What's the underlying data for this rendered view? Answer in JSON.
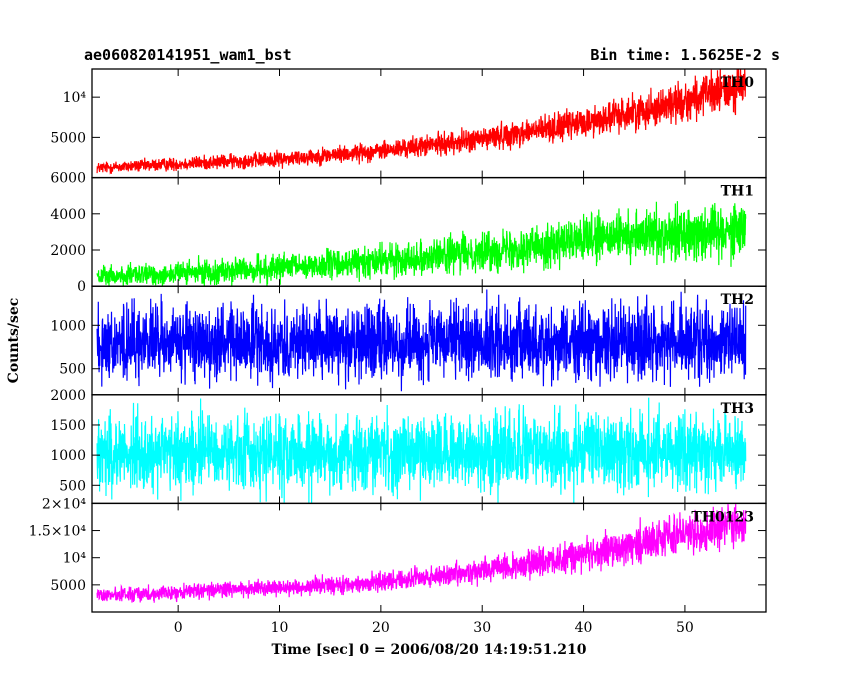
{
  "header": {
    "title": "ae060820141951_wam1_bst",
    "bin_time": "Bin time: 1.5625E-2 s"
  },
  "chart_data": {
    "type": "line",
    "title": "ae060820141951_wam1_bst",
    "subtitle": "Bin time: 1.5625E-2 s",
    "xlabel": "Time [sec] 0 = 2006/08/20 14:19:51.210",
    "ylabel": "Counts/sec",
    "xlim": [
      -8.5,
      58
    ],
    "x_data_range": [
      -8,
      56
    ],
    "xticks": [
      0,
      10,
      20,
      30,
      40,
      50
    ],
    "xtick_labels": [
      "0",
      "10",
      "20",
      "30",
      "40",
      "50"
    ],
    "grid": false,
    "panels": [
      {
        "name": "TH0",
        "color": "#ff0000",
        "ylim": [
          0,
          13500
        ],
        "yticks": [
          5000,
          10000
        ],
        "ytick_labels": [
          "5000",
          "10⁴"
        ],
        "trend": [
          [
            -8,
            1200
          ],
          [
            0,
            1700
          ],
          [
            10,
            2300
          ],
          [
            20,
            3300
          ],
          [
            30,
            4800
          ],
          [
            40,
            6800
          ],
          [
            50,
            9500
          ],
          [
            56,
            11500
          ]
        ],
        "noise": [
          [
            -8,
            500
          ],
          [
            20,
            800
          ],
          [
            40,
            1300
          ],
          [
            56,
            2000
          ]
        ]
      },
      {
        "name": "TH1",
        "color": "#00ff00",
        "ylim": [
          0,
          6000
        ],
        "yticks": [
          0,
          2000,
          4000,
          6000
        ],
        "ytick_labels": [
          "0",
          "2000",
          "4000",
          "6000"
        ],
        "trend": [
          [
            -8,
            500
          ],
          [
            0,
            700
          ],
          [
            10,
            1000
          ],
          [
            20,
            1400
          ],
          [
            30,
            1900
          ],
          [
            40,
            2500
          ],
          [
            50,
            3000
          ],
          [
            56,
            3200
          ]
        ],
        "noise": [
          [
            -8,
            400
          ],
          [
            20,
            600
          ],
          [
            40,
            900
          ],
          [
            56,
            1100
          ]
        ]
      },
      {
        "name": "TH2",
        "color": "#0000ff",
        "ylim": [
          200,
          1450
        ],
        "yticks": [
          500,
          1000
        ],
        "ytick_labels": [
          "500",
          "1000"
        ],
        "trend": [
          [
            -8,
            800
          ],
          [
            56,
            800
          ]
        ],
        "noise": [
          [
            -8,
            300
          ],
          [
            56,
            300
          ]
        ]
      },
      {
        "name": "TH3",
        "color": "#00ffff",
        "ylim": [
          200,
          2000
        ],
        "yticks": [
          500,
          1000,
          1500,
          2000
        ],
        "ytick_labels": [
          "500",
          "1000",
          "1500",
          "2000"
        ],
        "trend": [
          [
            -8,
            1050
          ],
          [
            56,
            1050
          ]
        ],
        "noise": [
          [
            -8,
            450
          ],
          [
            56,
            450
          ]
        ]
      },
      {
        "name": "TH0123",
        "color": "#ff00ff",
        "ylim": [
          0,
          20000
        ],
        "yticks": [
          5000,
          10000,
          15000,
          20000
        ],
        "ytick_labels": [
          "5000",
          "10⁴",
          "1.5×10⁴",
          "2×10⁴"
        ],
        "trend": [
          [
            -8,
            3000
          ],
          [
            0,
            3700
          ],
          [
            10,
            4500
          ],
          [
            20,
            5500
          ],
          [
            30,
            7500
          ],
          [
            40,
            10500
          ],
          [
            50,
            14500
          ],
          [
            56,
            16000
          ]
        ],
        "noise": [
          [
            -8,
            900
          ],
          [
            20,
            1200
          ],
          [
            40,
            2000
          ],
          [
            56,
            2800
          ]
        ]
      }
    ]
  }
}
